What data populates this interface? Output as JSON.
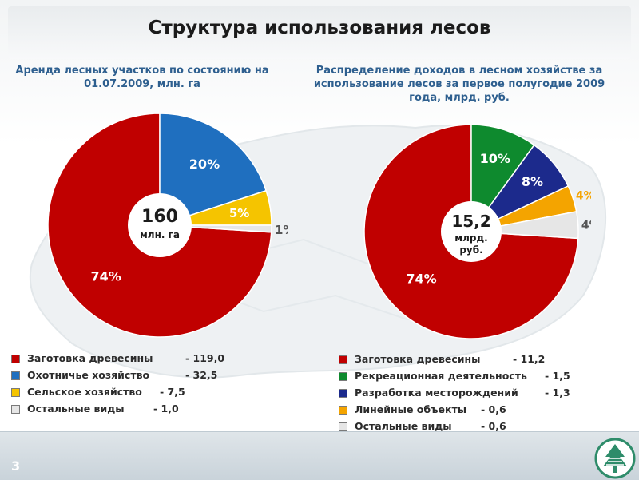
{
  "slide": {
    "title": "Структура использования лесов",
    "page_number": "3"
  },
  "colors": {
    "red": "#c00000",
    "blue": "#1f6fbf",
    "yellow": "#f5c400",
    "light_gray": "#e6e6e6",
    "green": "#0e8a2e",
    "navy": "#1c2a8c",
    "orange": "#f4a400",
    "subtitle_blue": "#2e5f8f"
  },
  "chart_data": [
    {
      "type": "pie",
      "title": "Аренда лесных участков по состоянию на 01.07.2009, млн. га",
      "center_value": "160",
      "center_unit": "млн. га",
      "slices": [
        {
          "label": "Заготовка древесины",
          "value": 119.0,
          "value_text": "- 119,0",
          "percent": 74,
          "percent_text": "74%",
          "color": "#c00000"
        },
        {
          "label": "Охотничье хозяйство",
          "value": 32.5,
          "value_text": "- 32,5",
          "percent": 20,
          "percent_text": "20%",
          "color": "#1f6fbf"
        },
        {
          "label": "Сельское хозяйство",
          "value": 7.5,
          "value_text": "- 7,5",
          "percent": 5,
          "percent_text": "5%",
          "color": "#f5c400"
        },
        {
          "label": "Остальные виды",
          "value": 1.0,
          "value_text": "- 1,0",
          "percent": 1,
          "percent_text": "1%",
          "color": "#e6e6e6"
        }
      ]
    },
    {
      "type": "pie",
      "title": "Распределение доходов в лесном хозяйстве за использование лесов за первое полугодие 2009 года, млрд. руб.",
      "center_value": "15,2",
      "center_unit": "млрд. руб.",
      "slices": [
        {
          "label": "Заготовка древесины",
          "value": 11.2,
          "value_text": "- 11,2",
          "percent": 74,
          "percent_text": "74%",
          "color": "#c00000"
        },
        {
          "label": "Рекреационная деятельность",
          "value": 1.5,
          "value_text": "- 1,5",
          "percent": 10,
          "percent_text": "10%",
          "color": "#0e8a2e"
        },
        {
          "label": "Разработка месторождений",
          "value": 1.3,
          "value_text": "- 1,3",
          "percent": 8,
          "percent_text": "8%",
          "color": "#1c2a8c"
        },
        {
          "label": "Линейные объекты",
          "value": 0.6,
          "value_text": "- 0,6",
          "percent": 4,
          "percent_text": "4%",
          "color": "#f4a400"
        },
        {
          "label": "Остальные виды",
          "value": 0.6,
          "value_text": "- 0,6",
          "percent": 4,
          "percent_text": "4%",
          "color": "#e6e6e6"
        }
      ]
    }
  ]
}
